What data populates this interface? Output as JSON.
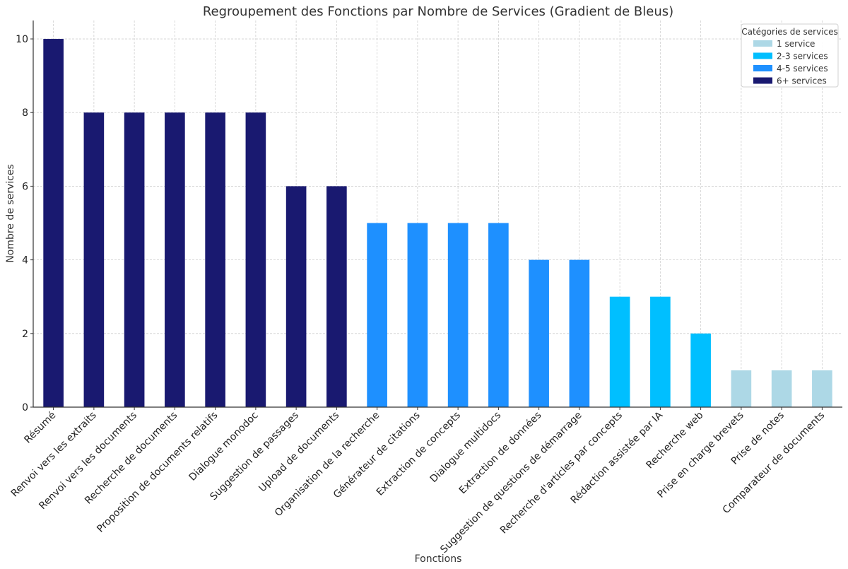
{
  "chart_data": {
    "type": "bar",
    "title": "Regroupement des Fonctions par Nombre de Services (Gradient de Bleus)",
    "xlabel": "Fonctions",
    "ylabel": "Nombre de services",
    "ylim": [
      0,
      10.5
    ],
    "yticks": [
      0,
      2,
      4,
      6,
      8,
      10
    ],
    "grid": true,
    "legend_position": "top-right",
    "categories": [
      "Résumé",
      "Renvoi vers les extraits",
      "Renvoi vers les documents",
      "Recherche de documents",
      "Proposition de documents relatifs",
      "Dialogue monodoc",
      "Suggestion de passages",
      "Upload de documents",
      "Organisation de la recherche",
      "Générateur de citations",
      "Extraction de concepts",
      "Dialogue multidocs",
      "Extraction de données",
      "Suggestion de questions de démarrage",
      "Recherche d'articles par concepts",
      "Rédaction assistée par IA",
      "Recherche web",
      "Prise en charge brevets",
      "Prise de notes",
      "Comparateur de documents"
    ],
    "values": [
      10,
      8,
      8,
      8,
      8,
      8,
      6,
      6,
      5,
      5,
      5,
      5,
      4,
      4,
      3,
      3,
      2,
      1,
      1,
      1
    ],
    "bar_categories": [
      "6+ services",
      "6+ services",
      "6+ services",
      "6+ services",
      "6+ services",
      "6+ services",
      "6+ services",
      "6+ services",
      "4-5 services",
      "4-5 services",
      "4-5 services",
      "4-5 services",
      "4-5 services",
      "4-5 services",
      "2-3 services",
      "2-3 services",
      "2-3 services",
      "1 service",
      "1 service",
      "1 service"
    ],
    "legend": {
      "title": "Catégories de services",
      "items": [
        {
          "label": "1 service",
          "color": "#add8e6"
        },
        {
          "label": "2-3 services",
          "color": "#00bfff"
        },
        {
          "label": "4-5 services",
          "color": "#1e90ff"
        },
        {
          "label": "6+ services",
          "color": "#191970"
        }
      ]
    }
  }
}
